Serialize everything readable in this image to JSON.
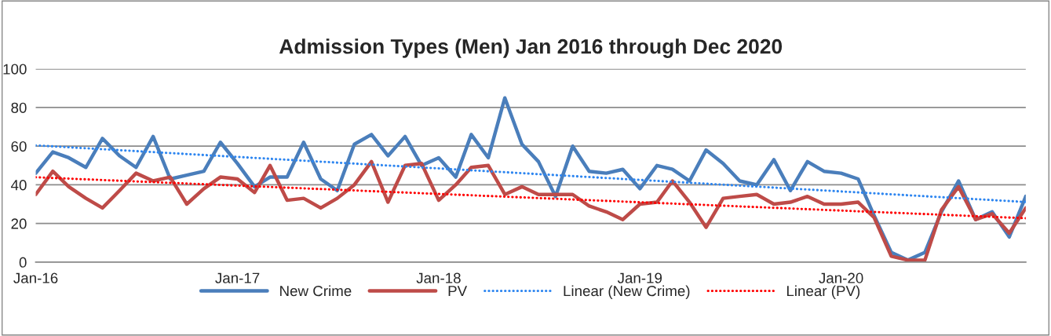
{
  "chart_data": {
    "type": "line",
    "title": "Admission Types (Men) Jan 2016 through Dec 2020",
    "x": [
      "2016-01",
      "2016-02",
      "2016-03",
      "2016-04",
      "2016-05",
      "2016-06",
      "2016-07",
      "2016-08",
      "2016-09",
      "2016-10",
      "2016-11",
      "2016-12",
      "2017-01",
      "2017-02",
      "2017-03",
      "2017-04",
      "2017-05",
      "2017-06",
      "2017-07",
      "2017-08",
      "2017-09",
      "2017-10",
      "2017-11",
      "2017-12",
      "2018-01",
      "2018-02",
      "2018-03",
      "2018-04",
      "2018-05",
      "2018-06",
      "2018-07",
      "2018-08",
      "2018-09",
      "2018-10",
      "2018-11",
      "2018-12",
      "2019-01",
      "2019-02",
      "2019-03",
      "2019-04",
      "2019-05",
      "2019-06",
      "2019-07",
      "2019-08",
      "2019-09",
      "2019-10",
      "2019-11",
      "2019-12",
      "2020-01",
      "2020-02",
      "2020-03",
      "2020-04",
      "2020-05",
      "2020-06",
      "2020-07",
      "2020-08",
      "2020-09",
      "2020-10",
      "2020-11",
      "2020-12"
    ],
    "series": [
      {
        "name": "New Crime",
        "color": "#4a7ebb",
        "line_style": "solid",
        "values": [
          46,
          57,
          54,
          49,
          64,
          55,
          49,
          65,
          43,
          45,
          47,
          62,
          51,
          39,
          44,
          44,
          62,
          43,
          37,
          61,
          66,
          55,
          65,
          50,
          54,
          44,
          66,
          54,
          85,
          61,
          52,
          34,
          60,
          47,
          46,
          48,
          38,
          50,
          48,
          42,
          58,
          51,
          42,
          40,
          53,
          37,
          52,
          47,
          46,
          43,
          24,
          5,
          1,
          5,
          26,
          42,
          22,
          26,
          13,
          34
        ]
      },
      {
        "name": "PV",
        "color": "#be4b48",
        "line_style": "solid",
        "values": [
          35,
          47,
          39,
          33,
          28,
          37,
          46,
          42,
          44,
          30,
          38,
          44,
          43,
          36,
          50,
          32,
          33,
          28,
          33,
          40,
          52,
          31,
          50,
          51,
          32,
          40,
          49,
          50,
          35,
          39,
          35,
          35,
          35,
          29,
          26,
          22,
          30,
          31,
          42,
          31,
          18,
          33,
          34,
          35,
          30,
          31,
          34,
          30,
          30,
          31,
          23,
          3,
          1,
          1,
          27,
          39,
          22,
          25,
          15,
          28
        ]
      },
      {
        "name": "Linear (New Crime)",
        "color": "#2e86f0",
        "line_style": "dotted",
        "x": [
          "2016-01",
          "2020-12"
        ],
        "values": [
          60.4,
          31.1
        ]
      },
      {
        "name": "Linear (PV)",
        "color": "#ff0000",
        "line_style": "dotted",
        "x": [
          "2016-01",
          "2020-12"
        ],
        "values": [
          43.9,
          22.7
        ]
      }
    ],
    "xlim": [
      "2016-01",
      "2020-12"
    ],
    "xticks": [
      {
        "value": "2016-01",
        "label": "Jan-16"
      },
      {
        "value": "2017-01",
        "label": "Jan-17"
      },
      {
        "value": "2018-01",
        "label": "Jan-18"
      },
      {
        "value": "2019-01",
        "label": "Jan-19"
      },
      {
        "value": "2020-01",
        "label": "Jan-20"
      }
    ],
    "ylim": [
      0,
      100
    ],
    "yticks": [
      0,
      20,
      40,
      60,
      80,
      100
    ],
    "grid": "y",
    "legend": "bottom",
    "marker": "none"
  }
}
